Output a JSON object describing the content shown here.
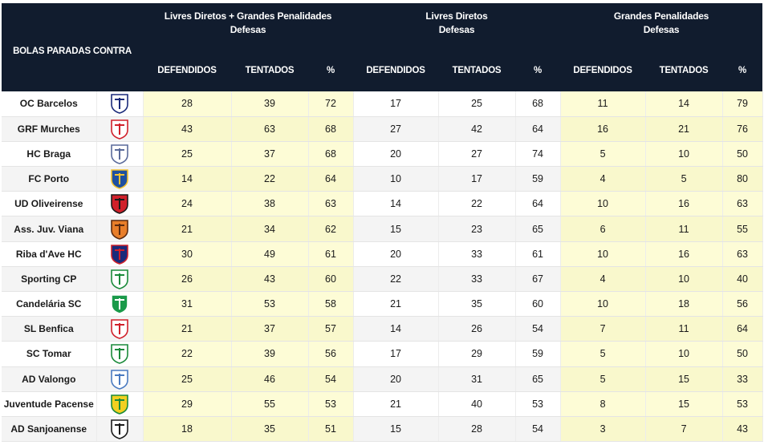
{
  "header": {
    "corner": "BOLAS PARADAS CONTRA",
    "groups": [
      {
        "line1": "Livres Diretos + Grandes Penalidades",
        "line2": "Defesas"
      },
      {
        "line1": "Livres Diretos",
        "line2": "Defesas"
      },
      {
        "line1": "Grandes Penalidades",
        "line2": "Defesas"
      }
    ],
    "sub": {
      "def": "DEFENDIDOS",
      "ten": "TENTADOS",
      "pct": "%"
    }
  },
  "rows": [
    {
      "team": "OC Barcelos",
      "crest": "oc-barcelos-crest",
      "c1": [
        "#ffffff",
        "#1a2a7a"
      ],
      "t": [
        28,
        39,
        72
      ],
      "ld": [
        17,
        25,
        68
      ],
      "gp": [
        11,
        14,
        79
      ]
    },
    {
      "team": "GRF Murches",
      "crest": "grf-murches-crest",
      "c1": [
        "#ffffff",
        "#d0202a"
      ],
      "t": [
        43,
        63,
        68
      ],
      "ld": [
        27,
        42,
        64
      ],
      "gp": [
        16,
        21,
        76
      ]
    },
    {
      "team": "HC Braga",
      "crest": "hc-braga-crest",
      "c1": [
        "#ffffff",
        "#5a6a9a"
      ],
      "t": [
        25,
        37,
        68
      ],
      "ld": [
        20,
        27,
        74
      ],
      "gp": [
        5,
        10,
        50
      ]
    },
    {
      "team": "FC Porto",
      "crest": "fc-porto-crest",
      "c1": [
        "#1d4fa0",
        "#f2c230"
      ],
      "t": [
        14,
        22,
        64
      ],
      "ld": [
        10,
        17,
        59
      ],
      "gp": [
        4,
        5,
        80
      ]
    },
    {
      "team": "UD Oliveirense",
      "crest": "ud-oliveirense-crest",
      "c1": [
        "#d0202a",
        "#1a1a1a"
      ],
      "t": [
        24,
        38,
        63
      ],
      "ld": [
        14,
        22,
        64
      ],
      "gp": [
        10,
        16,
        63
      ]
    },
    {
      "team": "Ass. Juv. Viana",
      "crest": "ass-juv-viana-crest",
      "c1": [
        "#e87e2a",
        "#5a2a10"
      ],
      "t": [
        21,
        34,
        62
      ],
      "ld": [
        15,
        23,
        65
      ],
      "gp": [
        6,
        11,
        55
      ]
    },
    {
      "team": "Riba d'Ave HC",
      "crest": "riba-dave-crest",
      "c1": [
        "#1a2a7a",
        "#d0202a"
      ],
      "t": [
        30,
        49,
        61
      ],
      "ld": [
        20,
        33,
        61
      ],
      "gp": [
        10,
        16,
        63
      ]
    },
    {
      "team": "Sporting CP",
      "crest": "sporting-cp-crest",
      "c1": [
        "#ffffff",
        "#1a8a3a"
      ],
      "t": [
        26,
        43,
        60
      ],
      "ld": [
        22,
        33,
        67
      ],
      "gp": [
        4,
        10,
        40
      ]
    },
    {
      "team": "Candelária SC",
      "crest": "candelaria-sc-crest",
      "c1": [
        "#1a9a4a",
        "#ffffff"
      ],
      "t": [
        31,
        53,
        58
      ],
      "ld": [
        21,
        35,
        60
      ],
      "gp": [
        10,
        18,
        56
      ]
    },
    {
      "team": "SL Benfica",
      "crest": "sl-benfica-crest",
      "c1": [
        "#ffffff",
        "#d0202a"
      ],
      "t": [
        21,
        37,
        57
      ],
      "ld": [
        14,
        26,
        54
      ],
      "gp": [
        7,
        11,
        64
      ]
    },
    {
      "team": "SC Tomar",
      "crest": "sc-tomar-crest",
      "c1": [
        "#ffffff",
        "#1a8a3a"
      ],
      "t": [
        22,
        39,
        56
      ],
      "ld": [
        17,
        29,
        59
      ],
      "gp": [
        5,
        10,
        50
      ]
    },
    {
      "team": "AD Valongo",
      "crest": "ad-valongo-crest",
      "c1": [
        "#ffffff",
        "#4a7ac0"
      ],
      "t": [
        25,
        46,
        54
      ],
      "ld": [
        20,
        31,
        65
      ],
      "gp": [
        5,
        15,
        33
      ]
    },
    {
      "team": "Juventude Pacense",
      "crest": "juventude-pacense-crest",
      "c1": [
        "#f2d020",
        "#1a8a3a"
      ],
      "t": [
        29,
        55,
        53
      ],
      "ld": [
        21,
        40,
        53
      ],
      "gp": [
        8,
        15,
        53
      ]
    },
    {
      "team": "AD Sanjoanense",
      "crest": "ad-sanjoanense-crest",
      "c1": [
        "#ffffff",
        "#1a1a1a"
      ],
      "t": [
        18,
        35,
        51
      ],
      "ld": [
        15,
        28,
        54
      ],
      "gp": [
        3,
        7,
        43
      ]
    }
  ]
}
